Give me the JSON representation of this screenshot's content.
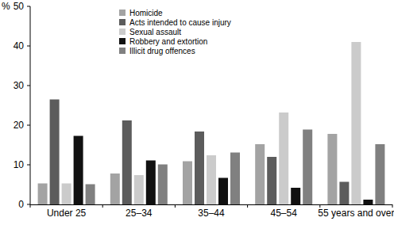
{
  "chart_data": {
    "type": "bar",
    "ylabel": "%",
    "categories": [
      "Under 25",
      "25–34",
      "35–44",
      "45–54",
      "55 years and over"
    ],
    "series": [
      {
        "name": "Homicide",
        "color": "#a3a3a3",
        "values": [
          5.3,
          7.8,
          10.9,
          15.2,
          17.8
        ]
      },
      {
        "name": "Acts intended to cause injury",
        "color": "#5c5c5c",
        "values": [
          26.5,
          21.2,
          18.4,
          12.0,
          5.7
        ]
      },
      {
        "name": "Sexual assault",
        "color": "#cbcbcb",
        "values": [
          5.3,
          7.4,
          12.4,
          23.2,
          41.0
        ]
      },
      {
        "name": "Robbery and extortion",
        "color": "#111111",
        "values": [
          17.3,
          11.1,
          6.7,
          4.2,
          1.2
        ]
      },
      {
        "name": "Illicit drug offences",
        "color": "#808080",
        "values": [
          5.1,
          10.1,
          13.1,
          18.9,
          15.2
        ]
      }
    ],
    "ylim": [
      0,
      50
    ],
    "yticks": [
      0,
      10,
      20,
      30,
      40,
      50
    ],
    "grid": false,
    "legend": "top"
  }
}
